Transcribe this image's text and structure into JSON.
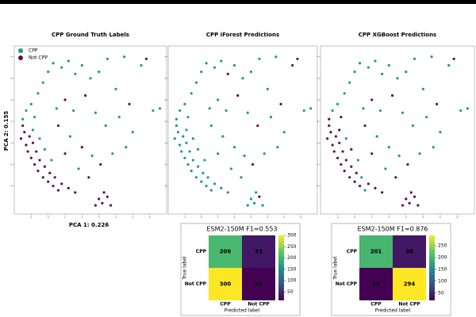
{
  "chart_data": [
    {
      "type": "scatter",
      "xlabel": "PCA 1: 0.226",
      "ylabel": "PCA 2: 0.155",
      "classes": [
        "CPP",
        "Not CPP"
      ],
      "colors": [
        "#1f9a7f",
        "#5e1049"
      ],
      "xlim": [
        -2,
        7
      ],
      "ylim": [
        -3.3,
        4.5
      ],
      "xticks": [
        -1,
        0,
        1,
        2,
        3,
        4,
        5,
        6
      ],
      "yticks": [
        -2,
        -1,
        0,
        1,
        2,
        3,
        4
      ],
      "x": [
        -1.5,
        -1.4,
        -1.6,
        -1.3,
        -1.2,
        -1.0,
        -0.8,
        -0.6,
        -0.3,
        0.0,
        0.3,
        0.6,
        -1.1,
        -0.9,
        -0.7,
        -0.5,
        -0.2,
        0.1,
        0.4,
        0.8,
        1.2,
        1.6,
        3.0,
        3.2,
        3.5,
        3.7,
        2.8,
        3.3,
        -1.3,
        -1.0,
        -0.8,
        -0.6,
        -0.3,
        0.0,
        0.3,
        -1.5,
        -0.9,
        -0.5,
        -0.2,
        0.2,
        0.8,
        1.2,
        1.6,
        2.0,
        2.5,
        3.0,
        3.5,
        4.5,
        5.5,
        4.0,
        6.2,
        6.6,
        1.0,
        1.5,
        2.2,
        2.8,
        3.4,
        4.2,
        5.0,
        0.6,
        1.3,
        2.0,
        2.6,
        3.1,
        3.8,
        4.6,
        1.0,
        1.8,
        2.4,
        0.5,
        4.8,
        5.8
      ],
      "y": [
        0.8,
        0.5,
        0.2,
        -0.1,
        -0.4,
        -0.7,
        -1.0,
        -1.3,
        -1.6,
        -1.8,
        -2.0,
        -2.2,
        0.3,
        0.0,
        -0.4,
        -0.8,
        -1.1,
        -1.4,
        -1.6,
        -1.9,
        -2.1,
        -2.3,
        -2.6,
        -2.8,
        -2.5,
        -2.9,
        -2.9,
        -2.3,
        1.5,
        1.8,
        1.2,
        2.3,
        2.8,
        3.3,
        3.7,
        1.1,
        0.6,
        0.2,
        -0.3,
        -0.8,
        3.5,
        3.8,
        3.2,
        3.6,
        3.0,
        3.3,
        3.9,
        4.0,
        3.6,
        2.5,
        1.5,
        1.6,
        2.0,
        1.5,
        2.2,
        1.4,
        0.8,
        1.2,
        0.5,
        0.8,
        0.3,
        -0.2,
        -0.6,
        -1.0,
        -0.5,
        -0.2,
        -0.5,
        -1.2,
        -1.6,
        1.6,
        1.8,
        3.9
      ],
      "panels": [
        {
          "title": "CPP Ground Truth Labels",
          "legend": true,
          "labels": [
            1,
            1,
            1,
            1,
            1,
            1,
            1,
            1,
            1,
            1,
            1,
            1,
            1,
            1,
            1,
            1,
            1,
            1,
            1,
            1,
            1,
            1,
            1,
            1,
            1,
            1,
            1,
            1,
            0,
            0,
            0,
            0,
            0,
            0,
            0,
            0,
            0,
            0,
            0,
            0,
            0,
            0,
            0,
            0,
            0,
            0,
            0,
            0,
            0,
            0,
            0,
            0,
            1,
            0,
            1,
            0,
            0,
            0,
            0,
            1,
            0,
            1,
            0,
            1,
            0,
            0,
            1,
            0,
            1,
            0,
            1,
            1
          ]
        },
        {
          "title": "CPP iForest Predictions",
          "legend": false,
          "labels": [
            0,
            0,
            0,
            0,
            0,
            0,
            0,
            0,
            0,
            0,
            0,
            0,
            0,
            0,
            0,
            0,
            0,
            0,
            0,
            0,
            0,
            0,
            0,
            0,
            1,
            0,
            0,
            0,
            0,
            0,
            0,
            0,
            0,
            0,
            0,
            0,
            0,
            0,
            0,
            0,
            0,
            0,
            1,
            0,
            0,
            0,
            0,
            0,
            1,
            0,
            0,
            0,
            0,
            0,
            1,
            0,
            1,
            0,
            0,
            0,
            0,
            0,
            0,
            1,
            0,
            0,
            0,
            0,
            0,
            0,
            1,
            1
          ]
        },
        {
          "title": "CPP XGBoost Predictions",
          "legend": false,
          "labels": [
            1,
            1,
            1,
            1,
            1,
            1,
            1,
            1,
            1,
            1,
            1,
            0,
            1,
            1,
            1,
            1,
            1,
            1,
            0,
            1,
            1,
            1,
            1,
            1,
            1,
            1,
            1,
            1,
            0,
            0,
            1,
            0,
            0,
            0,
            0,
            1,
            1,
            0,
            1,
            0,
            0,
            0,
            0,
            0,
            0,
            0,
            0,
            0,
            0,
            0,
            0,
            0,
            1,
            0,
            1,
            0,
            0,
            0,
            0,
            1,
            0,
            0,
            0,
            1,
            0,
            0,
            1,
            0,
            1,
            0,
            1,
            1
          ]
        }
      ]
    },
    {
      "type": "heatmap",
      "title": "ESM2-150M F1=0.553",
      "xlabel": "Predicted label",
      "ylabel": "True label",
      "rows": [
        "CPP",
        "Not CPP"
      ],
      "cols": [
        "CPP",
        "Not CPP"
      ],
      "values": [
        [
          206,
          33
        ],
        [
          300,
          13
        ]
      ],
      "clim": [
        13,
        300
      ],
      "cticks": [
        50,
        100,
        150,
        200,
        250,
        300
      ]
    },
    {
      "type": "heatmap",
      "title": "ESM2-150M F1=0.876",
      "xlabel": "Predicted label",
      "ylabel": "True label",
      "rows": [
        "CPP",
        "Not CPP"
      ],
      "cols": [
        "CPP",
        "Not CPP"
      ],
      "values": [
        [
          201,
          38
        ],
        [
          19,
          294
        ]
      ],
      "clim": [
        19,
        294
      ],
      "cticks": [
        50,
        100,
        150,
        200,
        250
      ]
    }
  ]
}
